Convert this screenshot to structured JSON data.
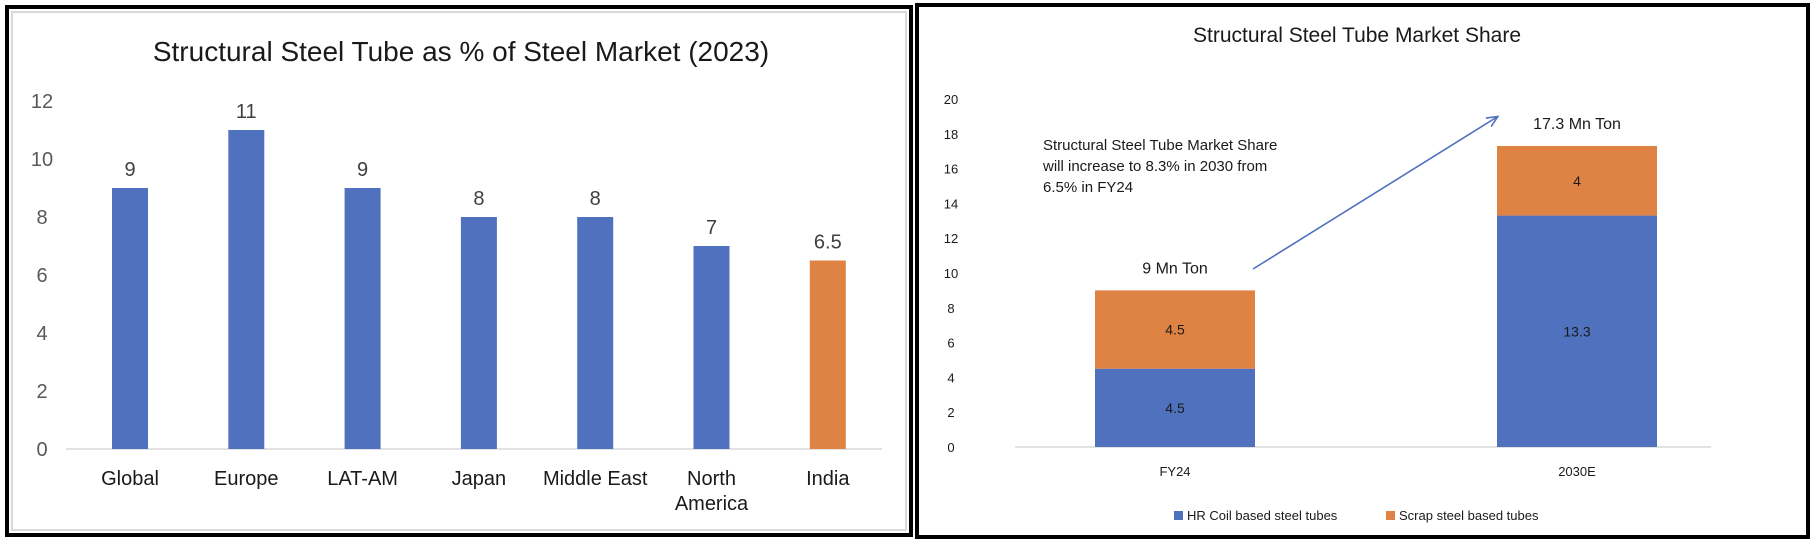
{
  "chart_data": [
    {
      "type": "bar",
      "title": "Structural Steel Tube as % of Steel Market (2023)",
      "xlabel": "",
      "ylabel": "",
      "ylim": [
        0,
        12
      ],
      "yticks": [
        0,
        2,
        4,
        6,
        8,
        10,
        12
      ],
      "grid": false,
      "categories": [
        "Global",
        "Europe",
        "LAT-AM",
        "Japan",
        "Middle East",
        "North America",
        "India"
      ],
      "category_label_lines": [
        [
          "Global"
        ],
        [
          "Europe"
        ],
        [
          "LAT-AM"
        ],
        [
          "Japan"
        ],
        [
          "Middle East"
        ],
        [
          "North",
          "America"
        ],
        [
          "India"
        ]
      ],
      "values": [
        9,
        11,
        9,
        8,
        8,
        7,
        6.5
      ],
      "data_labels": [
        "9",
        "11",
        "9",
        "8",
        "8",
        "7",
        "6.5"
      ],
      "bar_colors": [
        "#4F71BE",
        "#4F71BE",
        "#4F71BE",
        "#4F71BE",
        "#4F71BE",
        "#4F71BE",
        "#DF8344"
      ],
      "highlight_category": "India"
    },
    {
      "type": "bar",
      "stacked": true,
      "title": "Structural Steel Tube Market Share",
      "xlabel": "",
      "ylabel": "",
      "ylim": [
        0,
        20
      ],
      "yticks": [
        0,
        2,
        4,
        6,
        8,
        10,
        12,
        14,
        16,
        18,
        20
      ],
      "grid": false,
      "categories": [
        "FY24",
        "2030E"
      ],
      "series": [
        {
          "name": "HR Coil based steel tubes",
          "color": "#4F71BE",
          "values": [
            4.5,
            13.3
          ],
          "labels": [
            "4.5",
            "13.3"
          ]
        },
        {
          "name": "Scrap steel based tubes",
          "color": "#DF8344",
          "values": [
            4.5,
            4
          ],
          "labels": [
            "4.5",
            "4"
          ]
        }
      ],
      "totals": [
        9,
        17.3
      ],
      "total_labels": [
        "9 Mn Ton",
        "17.3 Mn Ton"
      ],
      "annotation": {
        "lines": [
          "Structural Steel Tube Market Share",
          "will increase to 8.3% in 2030 from",
          "6.5% in FY24"
        ],
        "arrow": "FY24 to 2030E growth arrow"
      },
      "legend_position": "bottom"
    }
  ]
}
